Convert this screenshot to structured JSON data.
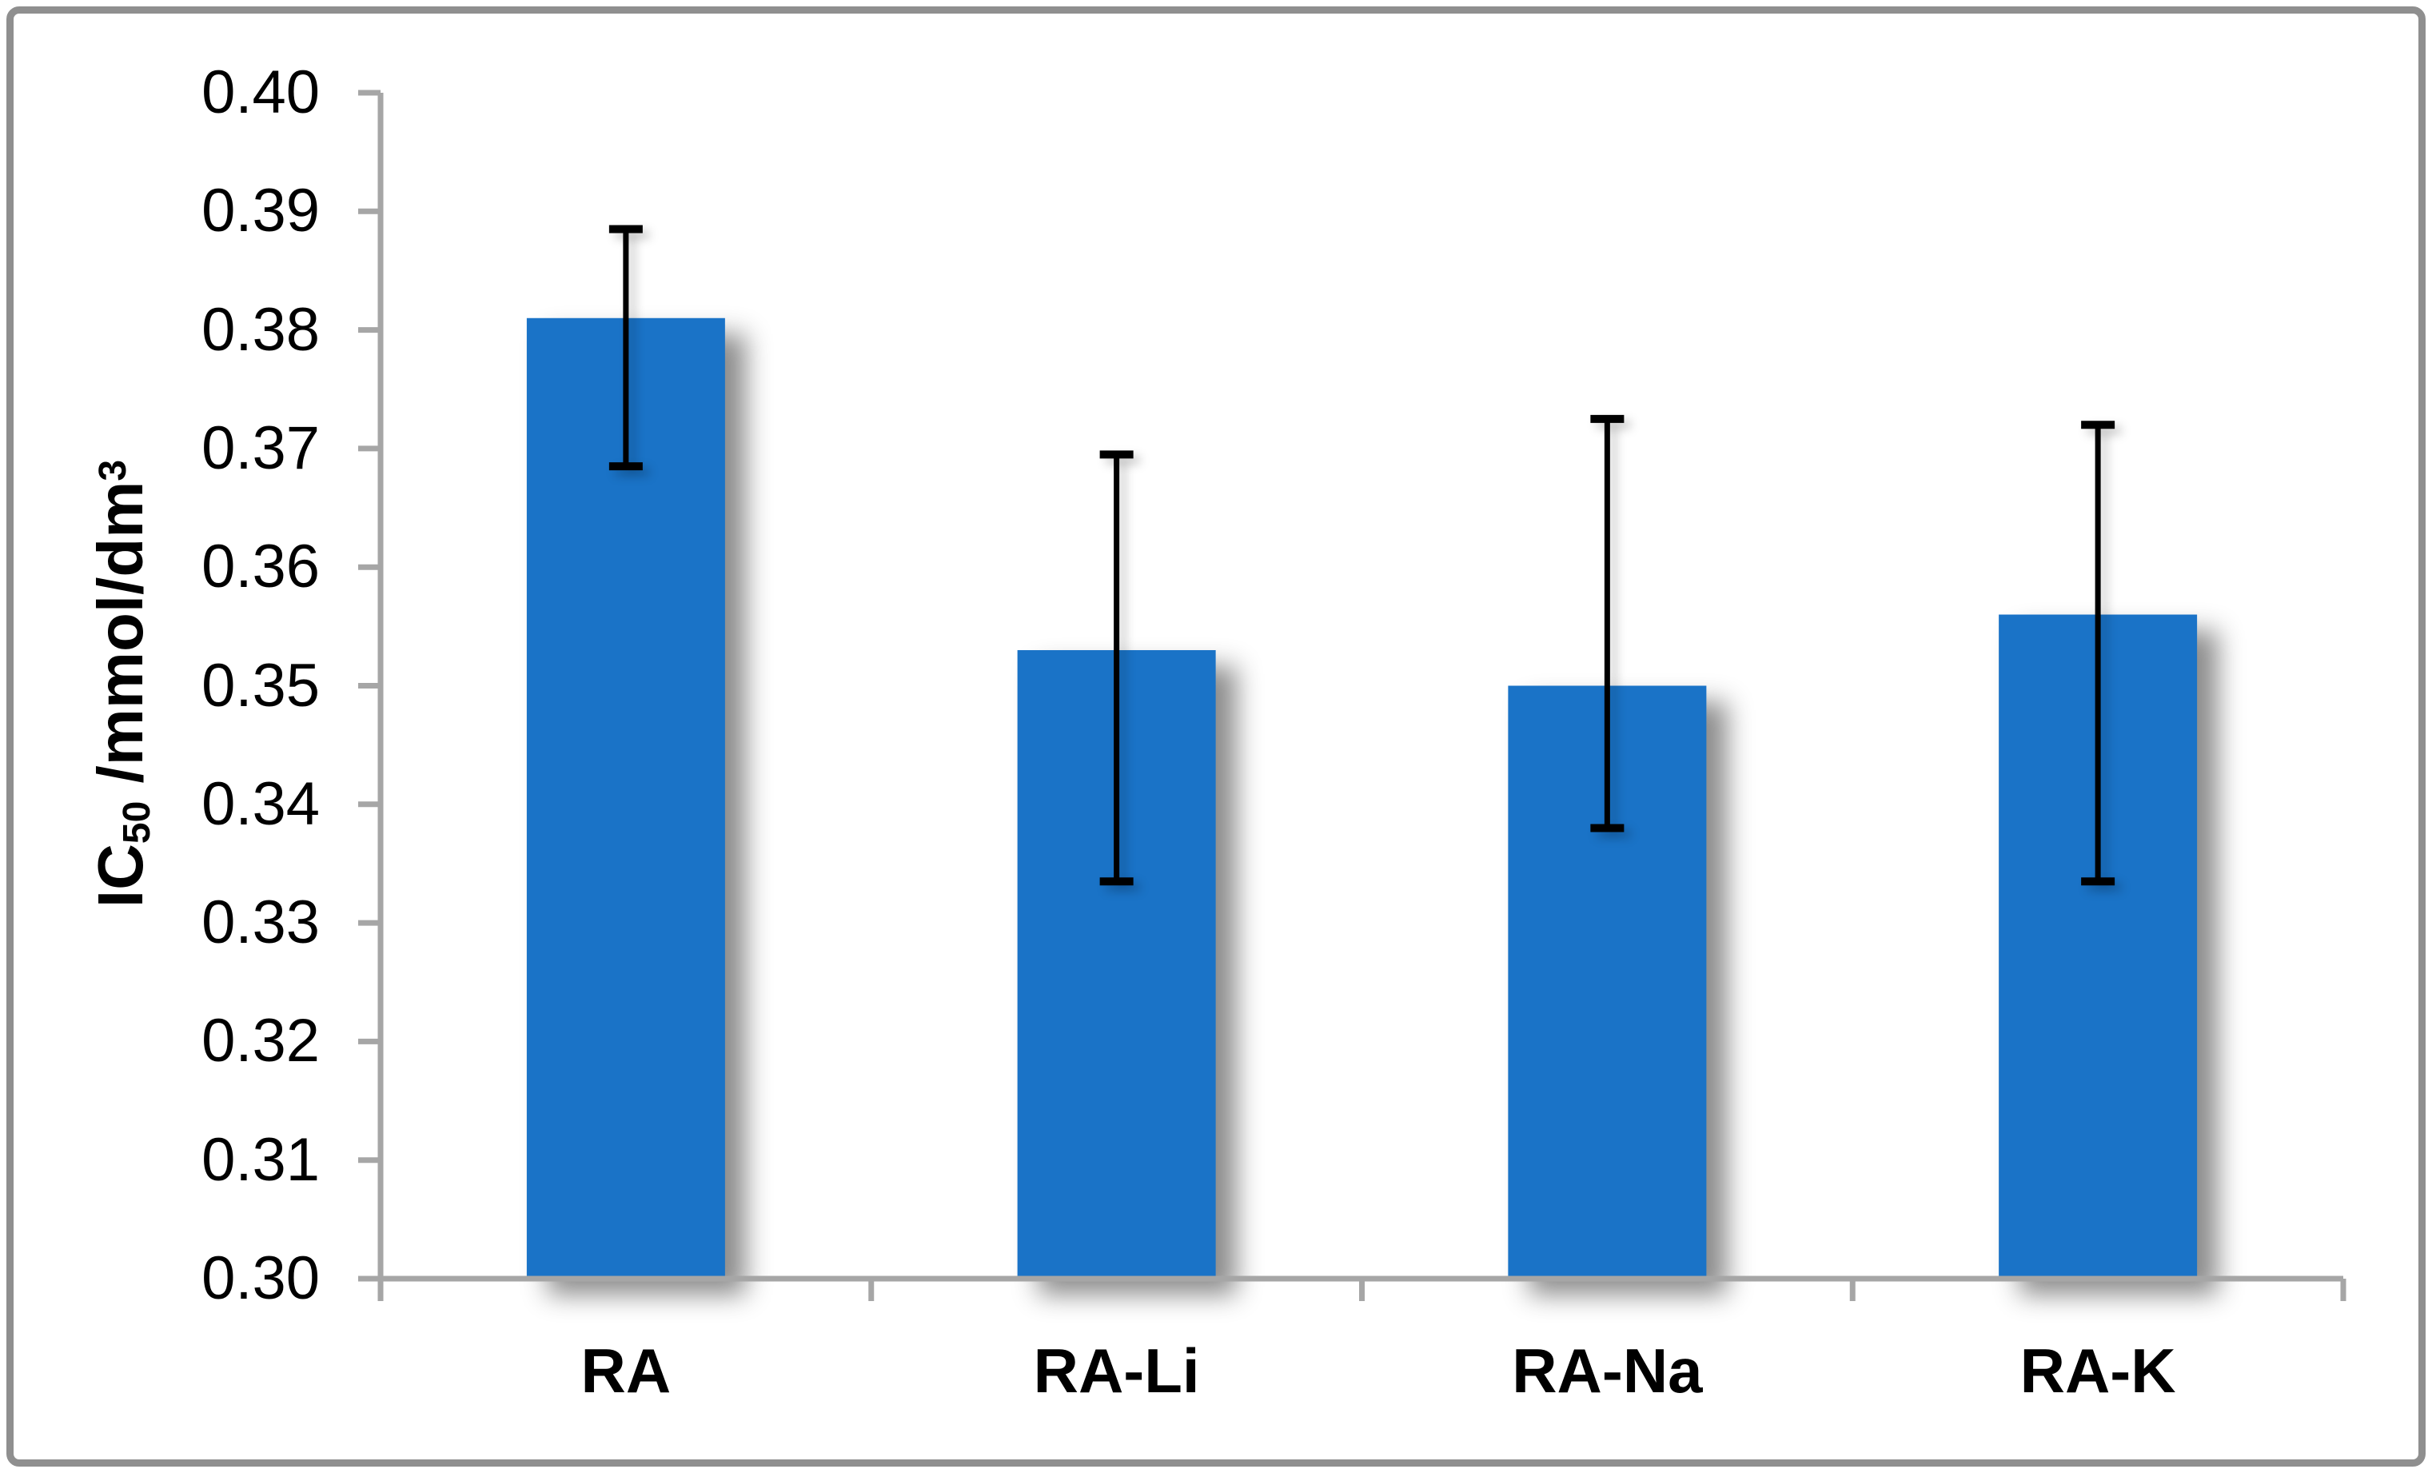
{
  "chart_data": {
    "type": "bar",
    "title": "",
    "categories": [
      "RA",
      "RA-Li",
      "RA-Na",
      "RA-K"
    ],
    "series": [
      {
        "name": "IC50",
        "values": [
          0.381,
          0.353,
          0.35,
          0.356
        ],
        "error_whisker_high": [
          0.3885,
          0.3695,
          0.3725,
          0.372
        ],
        "error_whisker_low": [
          0.3685,
          0.3335,
          0.338,
          0.3335
        ]
      }
    ],
    "xlabel": "",
    "ylabel": {
      "base": "IC",
      "sub": "50",
      "mid": " /mmol/dm",
      "sup": "3"
    },
    "ylim": [
      0.3,
      0.4
    ],
    "ytick_step": 0.01,
    "ytick_labels": [
      "0.40",
      "0.39",
      "0.38",
      "0.37",
      "0.36",
      "0.35",
      "0.34",
      "0.33",
      "0.32",
      "0.31",
      "0.30"
    ],
    "grid": false,
    "legend_position": "none",
    "bar_color": "#1A73C7",
    "error_bar_color": "#000000",
    "axis_color": "#A6A6A6",
    "frame_border_color": "#8F8F8F",
    "background_color": "#FFFFFF",
    "text_color": "#000000"
  }
}
